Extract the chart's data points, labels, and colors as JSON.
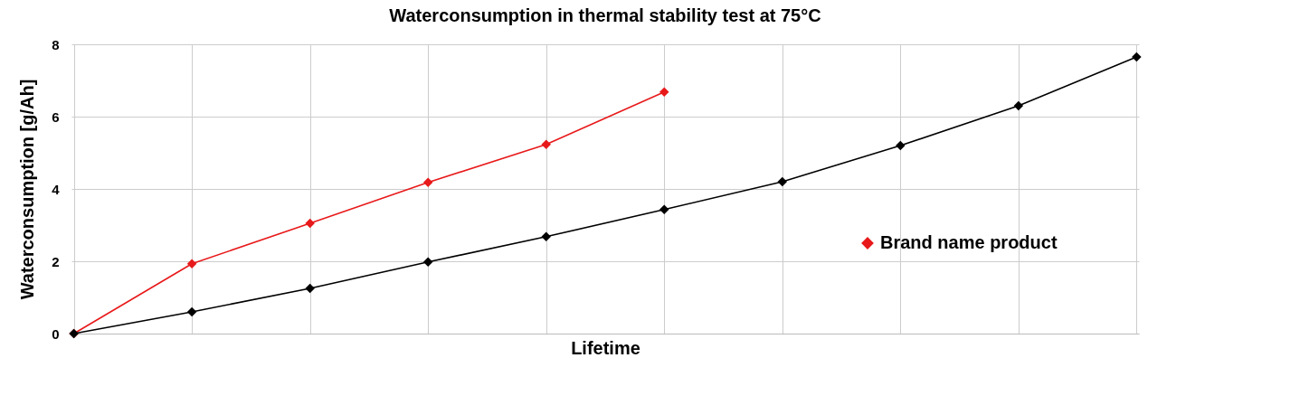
{
  "chart_data": {
    "type": "line",
    "title": "Waterconsumption in thermal stability test at 75°C",
    "xlabel": "Lifetime",
    "ylabel": "Waterconsumption [g/Ah]",
    "categories": [
      null,
      null,
      null,
      null,
      null,
      null,
      null,
      null,
      null,
      null
    ],
    "series": [
      {
        "name": "Brand name product",
        "color": "#e8191a",
        "values": [
          0,
          1.93,
          3.05,
          4.18,
          5.23,
          6.68,
          null,
          null,
          null,
          null
        ]
      },
      {
        "color": "#000000",
        "values": [
          0,
          0.6,
          1.25,
          1.98,
          2.68,
          3.43,
          4.2,
          5.2,
          6.3,
          7.65
        ]
      }
    ],
    "ylim": [
      0,
      8
    ],
    "yticks": [
      0,
      2,
      4,
      6,
      8
    ],
    "grid": true,
    "legend": "bottom right",
    "marker": "diamond",
    "line_style": "solid"
  }
}
